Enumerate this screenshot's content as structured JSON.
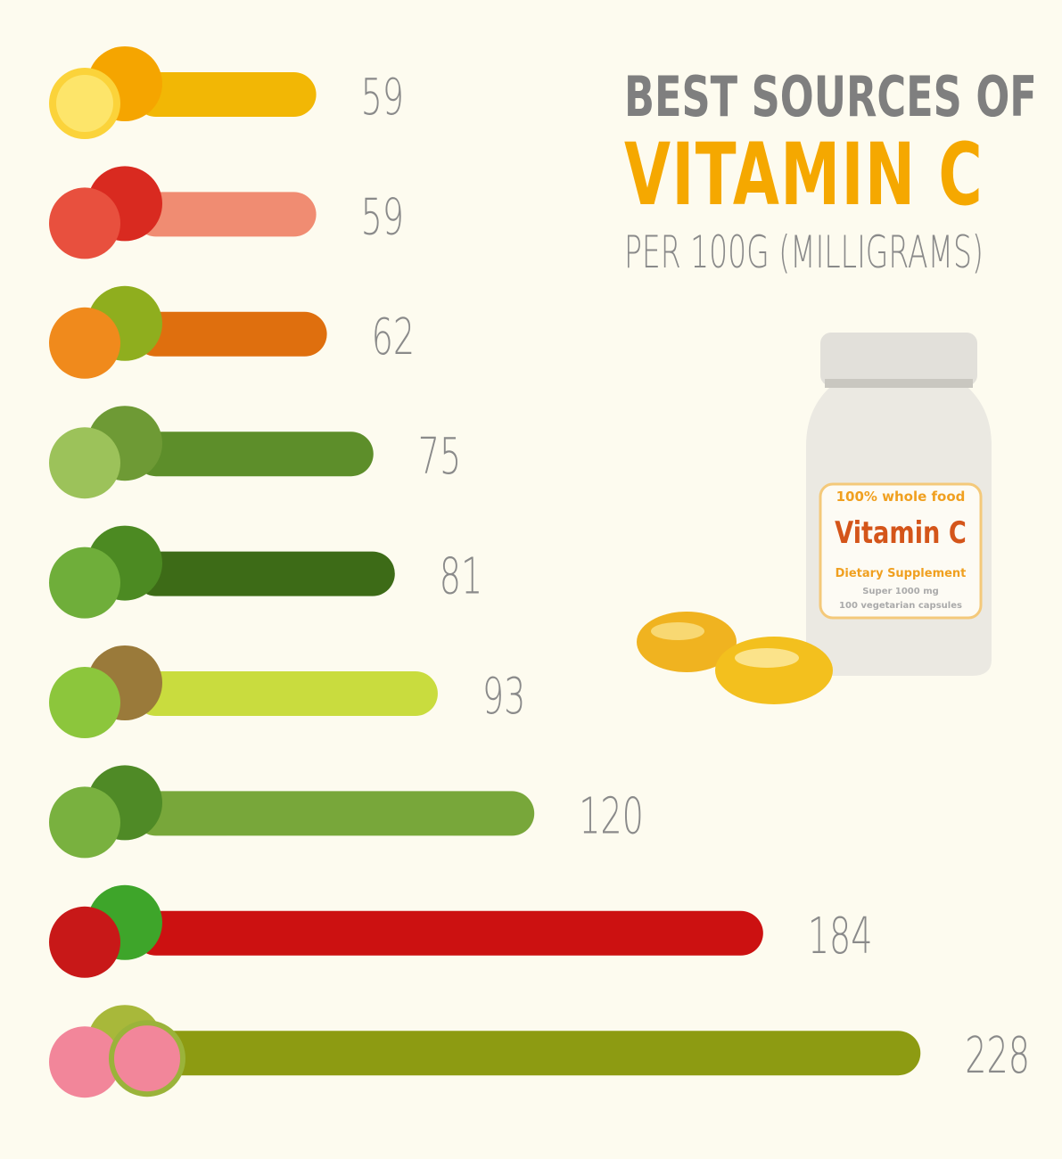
{
  "header": {
    "line1": "BEST SOURCES OF",
    "line2": "VITAMIN C",
    "line3": "PER 100G (MILLIGRAMS)"
  },
  "bottle_label": {
    "tagline": "100% whole food",
    "name": "Vitamin C",
    "type": "Dietary Supplement",
    "dose": "Super 1000 mg",
    "count": "100 vegetarian capsules"
  },
  "colors": {
    "background": "#fdfbef",
    "title_accent": "#f5a800",
    "title_gray": "#7f7f7f",
    "value_text": "#8a8a8a"
  },
  "chart_data": {
    "type": "bar",
    "orientation": "horizontal",
    "title": "BEST SOURCES OF VITAMIN C",
    "subtitle": "PER 100G (MILLIGRAMS)",
    "grid": false,
    "icons": [
      "orange-icon",
      "strawberry-icon",
      "papaya-icon",
      "brussels-sprouts-icon",
      "broccoli-icon",
      "kiwi-icon",
      "kale-icon",
      "bell-pepper-icon",
      "guava-icon"
    ],
    "values": [
      59,
      59,
      62,
      75,
      81,
      93,
      120,
      184,
      228
    ],
    "value_labels": [
      "59",
      "59",
      "62",
      "75",
      "81",
      "93",
      "120",
      "184",
      "228"
    ],
    "colors": [
      "#f2b705",
      "#f08c72",
      "#df6f0e",
      "#5d8e2a",
      "#3d6b17",
      "#c9dc3e",
      "#78a73a",
      "#cc1111",
      "#8d9b12"
    ]
  }
}
